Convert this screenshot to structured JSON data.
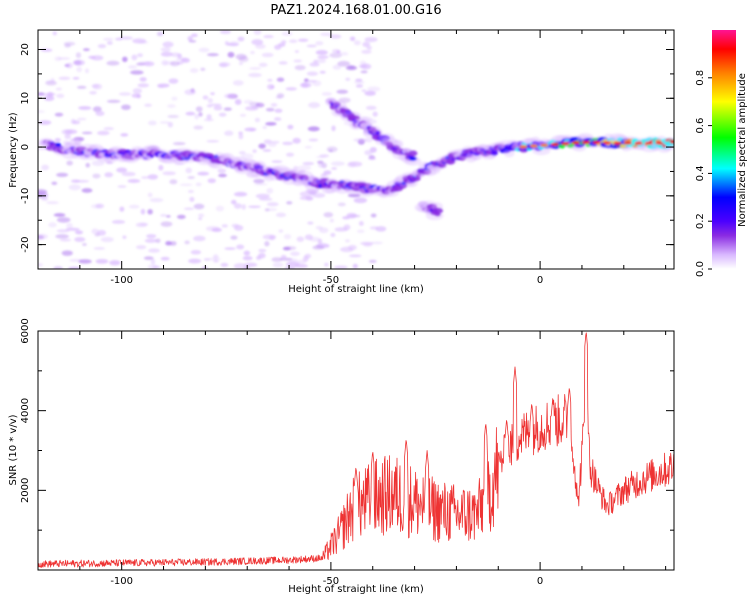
{
  "figure": {
    "title": "PAZ1.2024.168.01.00.G16"
  },
  "chart_data": [
    {
      "type": "heatmap",
      "title": "",
      "xlabel": "Height of straight line (km)",
      "ylabel": "Frequency (Hz)",
      "xlim": [
        -120,
        32
      ],
      "ylim": [
        -25,
        24
      ],
      "xticks": [
        -100,
        -50,
        0
      ],
      "yticks": [
        -20,
        -10,
        0,
        10,
        20
      ],
      "colorbar": {
        "label": "Normalized spectral amplitude",
        "range": [
          0,
          1
        ],
        "ticks": [
          "0.0",
          "0.2",
          "0.4",
          "0.6",
          "0.8"
        ],
        "colors": [
          "#ffffff",
          "#d9b8ff",
          "#8a2be2",
          "#4b00ff",
          "#0000ff",
          "#00ffff",
          "#00ff00",
          "#ffff00",
          "#ff8000",
          "#ff0000",
          "#ff1493"
        ]
      },
      "tracks": [
        {
          "name": "main-ridge",
          "points": [
            [
              -118,
              0.5
            ],
            [
              -110,
              -1
            ],
            [
              -100,
              -1.5
            ],
            [
              -90,
              -1.5
            ],
            [
              -80,
              -2
            ],
            [
              -70,
              -4
            ],
            [
              -60,
              -6
            ],
            [
              -52,
              -7.5
            ],
            [
              -45,
              -8
            ],
            [
              -36,
              -9
            ],
            [
              -30,
              -6
            ],
            [
              -26,
              -4
            ],
            [
              -20,
              -2
            ],
            [
              -15,
              -1
            ],
            [
              -10,
              -0.5
            ],
            [
              -5,
              0
            ],
            [
              0,
              0.3
            ],
            [
              10,
              1
            ],
            [
              20,
              0.8
            ],
            [
              32,
              0.8
            ]
          ]
        },
        {
          "name": "upper-branch",
          "points": [
            [
              -50,
              9
            ],
            [
              -45,
              6
            ],
            [
              -40,
              3
            ],
            [
              -35,
              0
            ],
            [
              -30,
              -2
            ]
          ]
        },
        {
          "name": "lower-branch",
          "points": [
            [
              -28,
              -12
            ],
            [
              -24,
              -13.5
            ]
          ]
        }
      ]
    },
    {
      "type": "line",
      "title": "",
      "xlabel": "Height of straight line (km)",
      "ylabel": "SNR (10 * v/v)",
      "xlim": [
        -120,
        32
      ],
      "ylim": [
        0,
        6000
      ],
      "xticks": [
        -100,
        -50,
        0
      ],
      "yticks": [
        2000,
        4000,
        6000
      ],
      "series": [
        {
          "color": "#ee3333",
          "envelope": [
            [
              -120,
              150
            ],
            [
              -80,
              200
            ],
            [
              -60,
              250
            ],
            [
              -52,
              300
            ],
            [
              -48,
              900
            ],
            [
              -45,
              1500
            ],
            [
              -40,
              1800
            ],
            [
              -35,
              1900
            ],
            [
              -30,
              1700
            ],
            [
              -25,
              1500
            ],
            [
              -20,
              1400
            ],
            [
              -15,
              1400
            ],
            [
              -12,
              2000
            ],
            [
              -10,
              2600
            ],
            [
              -8,
              3000
            ],
            [
              -6,
              3200
            ],
            [
              -4,
              3400
            ],
            [
              -2,
              3500
            ],
            [
              0,
              3600
            ],
            [
              3,
              3700
            ],
            [
              6,
              3800
            ],
            [
              8,
              3000
            ],
            [
              9,
              1600
            ],
            [
              11,
              4200
            ],
            [
              12,
              2600
            ],
            [
              14,
              2000
            ],
            [
              16,
              1600
            ],
            [
              20,
              2000
            ],
            [
              25,
              2300
            ],
            [
              32,
              2600
            ]
          ],
          "peaks": [
            [
              -44,
              2600
            ],
            [
              -40,
              3000
            ],
            [
              -32,
              3300
            ],
            [
              -27,
              3000
            ],
            [
              -13,
              3700
            ],
            [
              -8,
              3800
            ],
            [
              -6,
              5100
            ],
            [
              -2,
              4200
            ],
            [
              3,
              4300
            ],
            [
              7,
              4600
            ],
            [
              11,
              6000
            ]
          ]
        }
      ]
    }
  ]
}
